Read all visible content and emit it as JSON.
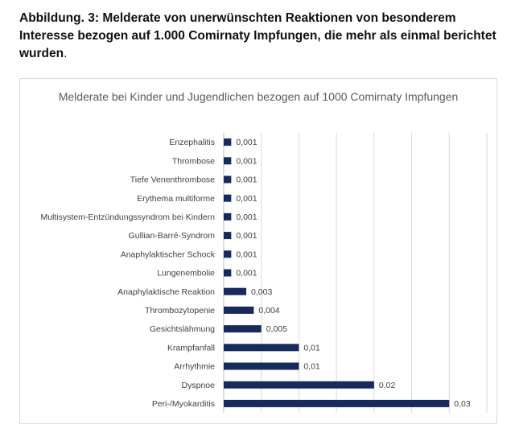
{
  "caption": {
    "text": "Abbildung. 3: Melderate von unerwünschten Reaktionen von besonderem Interesse bezogen auf 1.000 Comirnaty Impfungen, die mehr als einmal berichtet wurden",
    "end": "."
  },
  "chart_data": {
    "type": "bar",
    "orientation": "horizontal",
    "title": "Melderate  bei Kinder und Jugendlichen bezogen auf 1000 Comirnaty Impfungen",
    "categories": [
      "Enzephalitis",
      "Thrombose",
      "Tiefe Venenthrombose",
      "Erythema multiforme",
      "Multisystem-Entzündungssyndrom bei Kindern",
      "Gullian-Barré-Syndrom",
      "Anaphylaktischer Schock",
      "Lungenembolie",
      "Anaphylaktische Reaktion",
      "Thrombozytopenie",
      "Gesichtslähmung",
      "Krampfanfall",
      "Arrhythmie",
      "Dyspnoe",
      "Peri-/Myokarditis"
    ],
    "values": [
      0.001,
      0.001,
      0.001,
      0.001,
      0.001,
      0.001,
      0.001,
      0.001,
      0.003,
      0.004,
      0.005,
      0.01,
      0.01,
      0.02,
      0.03
    ],
    "labels": [
      "0,001",
      "0,001",
      "0,001",
      "0,001",
      "0,001",
      "0,001",
      "0,001",
      "0,001",
      "0,003",
      "0,004",
      "0,005",
      "0,01",
      "0,01",
      "0,02",
      "0,03"
    ],
    "xlim": [
      0,
      0.035
    ],
    "grid_step": 0.005,
    "grid": true,
    "x_tick_labels_shown": false,
    "bar_color": "#172a5c",
    "grid_color": "#d9d9d9"
  }
}
